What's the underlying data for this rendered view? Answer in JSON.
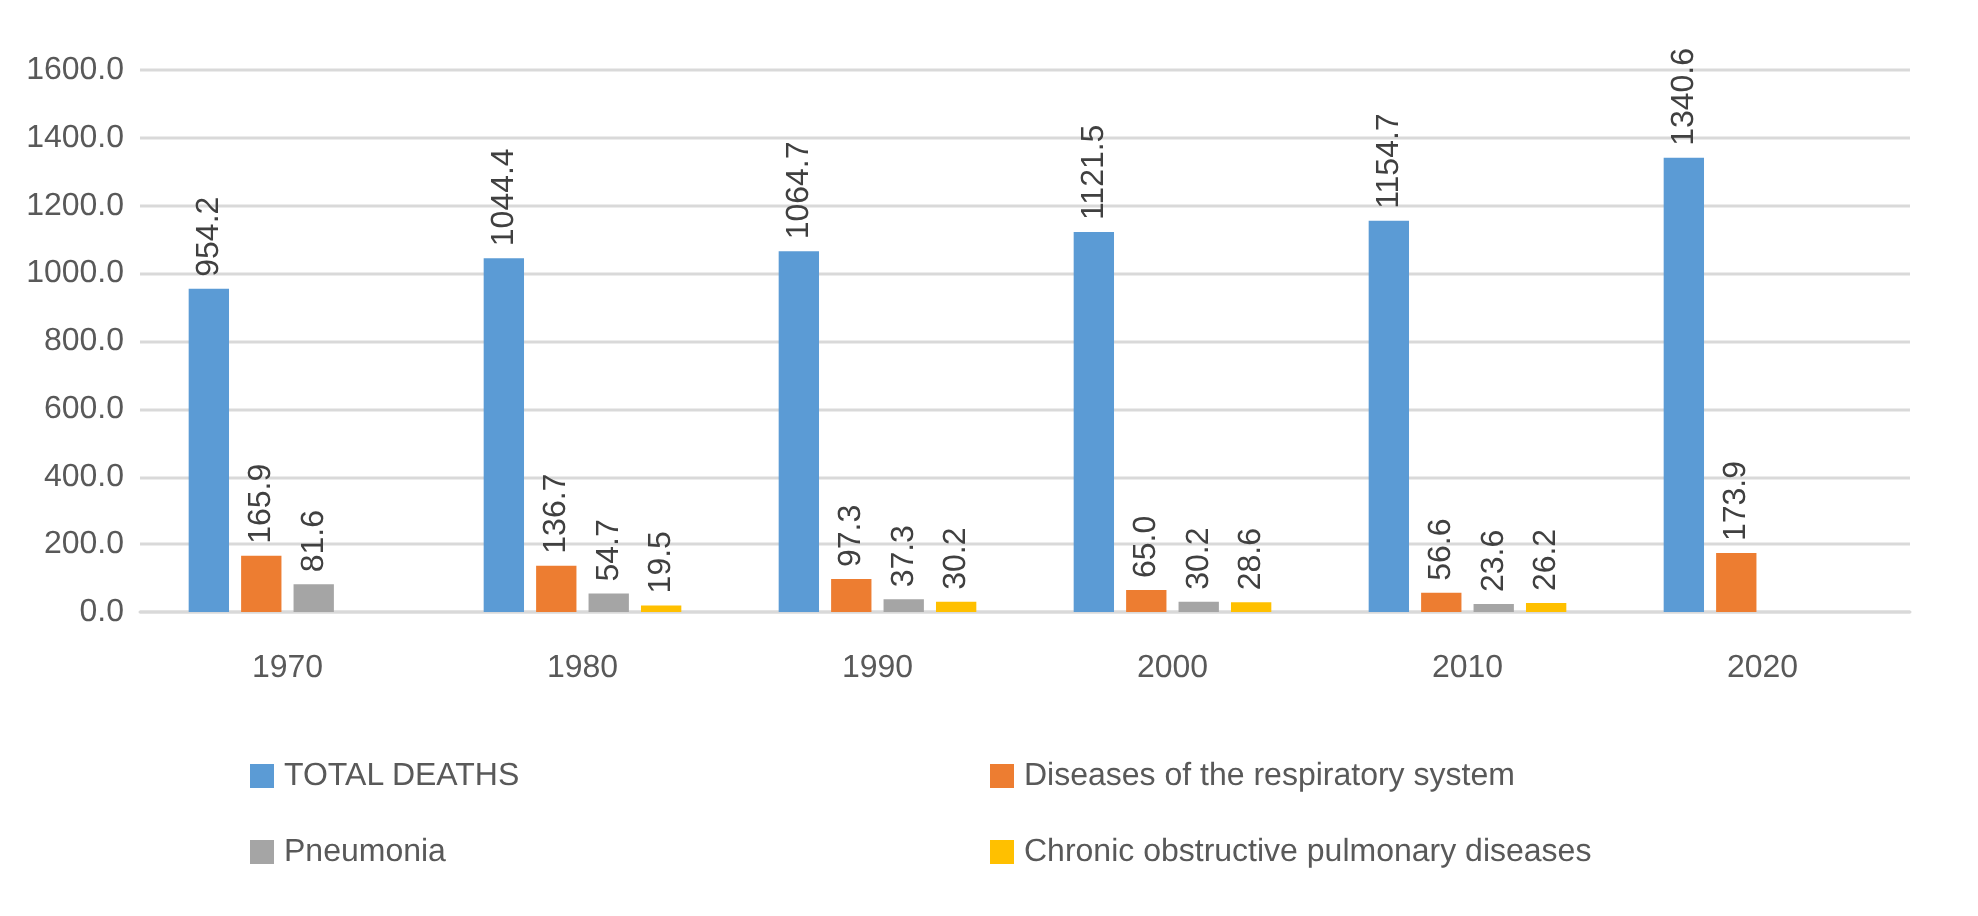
{
  "chart_data": {
    "type": "bar",
    "categories": [
      "1970",
      "1980",
      "1990",
      "2000",
      "2010",
      "2020"
    ],
    "series": [
      {
        "name": "TOTAL DEATHS",
        "color": "#5b9bd5",
        "values": [
          954.2,
          1044.4,
          1064.7,
          1121.5,
          1154.7,
          1340.6
        ],
        "value_labels": [
          "954.2",
          "1044.4",
          "1064.7",
          "1121.5",
          "1154.7",
          "1340.6"
        ]
      },
      {
        "name": "Diseases of the respiratory system",
        "color": "#ed7d31",
        "values": [
          165.9,
          136.7,
          97.3,
          65.0,
          56.6,
          173.9
        ],
        "value_labels": [
          "165.9",
          "136.7",
          "97.3",
          "65.0",
          "56.6",
          "173.9"
        ]
      },
      {
        "name": "Pneumonia",
        "color": "#a5a5a5",
        "values": [
          81.6,
          54.7,
          37.3,
          30.2,
          23.6,
          null
        ],
        "value_labels": [
          "81.6",
          "54.7",
          "37.3",
          "30.2",
          "23.6",
          null
        ]
      },
      {
        "name": "Chronic obstructive pulmonary diseases",
        "color": "#ffc000",
        "values": [
          null,
          19.5,
          30.2,
          28.6,
          26.2,
          null
        ],
        "value_labels": [
          null,
          "19.5",
          "30.2",
          "28.6",
          "26.2",
          null
        ]
      }
    ],
    "ylim": [
      0,
      1600
    ],
    "yticks": [
      {
        "value": 0,
        "label": "0.0"
      },
      {
        "value": 200,
        "label": "200.0"
      },
      {
        "value": 400,
        "label": "400.0"
      },
      {
        "value": 600,
        "label": "600.0"
      },
      {
        "value": 800,
        "label": "800.0"
      },
      {
        "value": 1000,
        "label": "1000.0"
      },
      {
        "value": 1200,
        "label": "1200.0"
      },
      {
        "value": 1400,
        "label": "1400.0"
      },
      {
        "value": 1600,
        "label": "1600.0"
      }
    ],
    "grid": "y",
    "legend": "bottom"
  }
}
